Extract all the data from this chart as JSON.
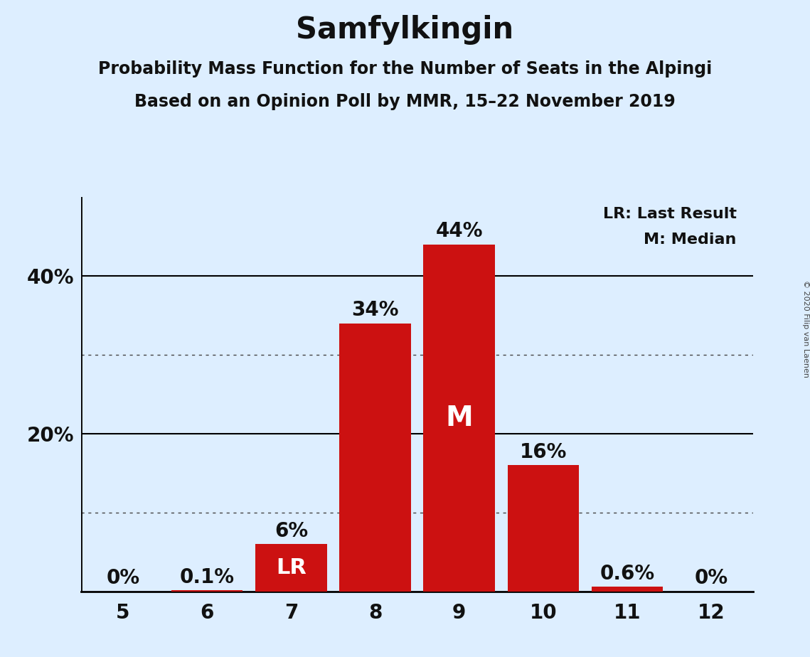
{
  "title": "Samfylkingin",
  "subtitle1": "Probability Mass Function for the Number of Seats in the Alpingi",
  "subtitle2": "Based on an Opinion Poll by MMR, 15–22 November 2019",
  "copyright": "© 2020 Filip van Laenen",
  "seats": [
    5,
    6,
    7,
    8,
    9,
    10,
    11,
    12
  ],
  "probabilities": [
    0.0,
    0.001,
    0.06,
    0.34,
    0.44,
    0.16,
    0.006,
    0.0
  ],
  "prob_labels": [
    "0%",
    "0.1%",
    "6%",
    "34%",
    "44%",
    "16%",
    "0.6%",
    "0%"
  ],
  "bar_color": "#cc1111",
  "background_color": "#ddeeff",
  "last_result_seat": 7,
  "median_seat": 9,
  "legend_lr": "LR: Last Result",
  "legend_m": "M: Median",
  "solid_yticks": [
    0.2,
    0.4
  ],
  "dotted_yticks": [
    0.1,
    0.3
  ],
  "ylim": [
    0,
    0.5
  ],
  "xlim": [
    4.5,
    12.5
  ],
  "title_fontsize": 30,
  "subtitle_fontsize": 17,
  "tick_fontsize": 20,
  "bar_label_fontsize": 20,
  "legend_fontsize": 16,
  "copyright_fontsize": 8
}
